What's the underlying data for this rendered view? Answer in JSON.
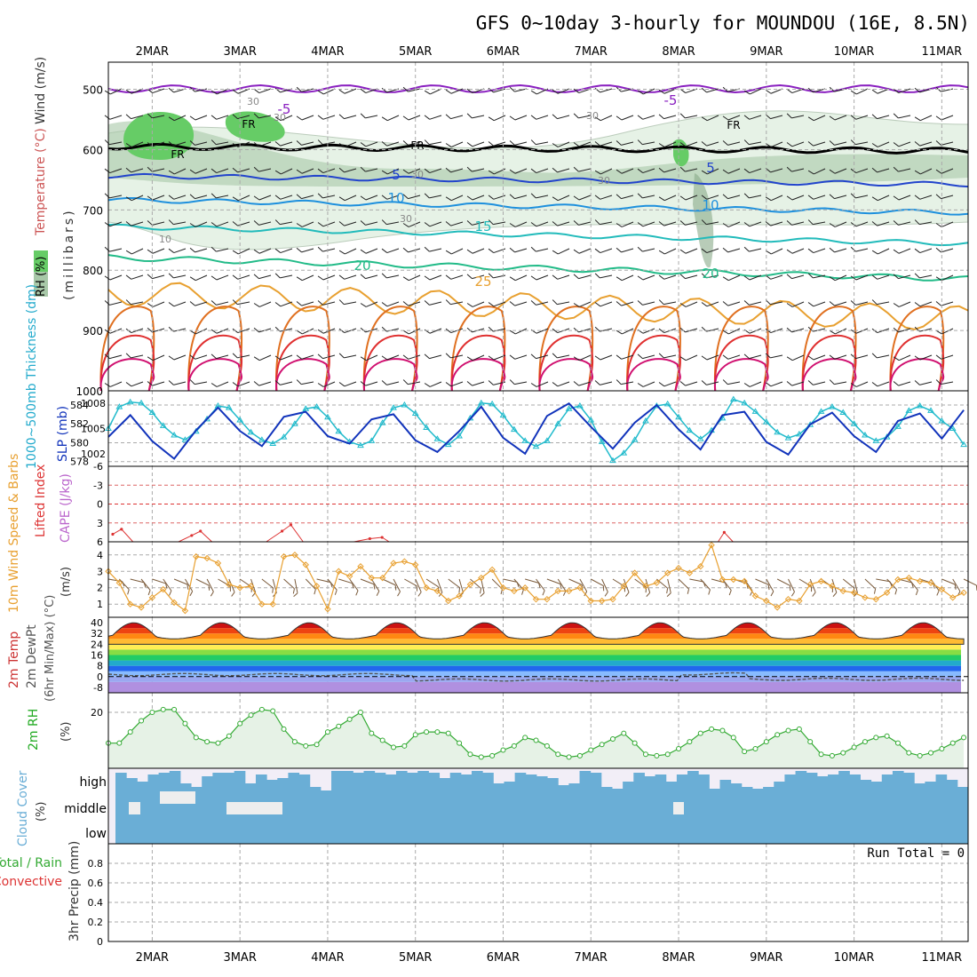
{
  "header": {
    "title": "GFS 0~10day 3-hourly for MOUNDOU (16E, 8.5N)"
  },
  "colors": {
    "rh_green": "#66cc66",
    "rh_mid": "#88aa88",
    "rh_light": "#e6f2e6",
    "thickness": "#22bbcc",
    "slp": "#1133bb",
    "lifted": "#dd3333",
    "wind_speed": "#e8a030",
    "dewpoint": "#666666",
    "rh2m": "#33aa33",
    "cloud": "#6aaed6",
    "grid": "#aaaaaa"
  },
  "time_axis": {
    "labels": [
      "2MAR",
      "3MAR",
      "4MAR",
      "5MAR",
      "6MAR",
      "7MAR",
      "8MAR",
      "9MAR",
      "10MAR",
      "11MAR"
    ],
    "start_offset": 0.5
  },
  "cross_section": {
    "wind_label": "Wind (m/s)",
    "temp_label": "Temperature (°C)",
    "rh_label": "RH (%)",
    "pressure_label": "(millibars)",
    "pressure_ticks": [
      "500",
      "600",
      "700",
      "800",
      "900",
      "1000"
    ],
    "isotherm_labels": [
      "-5",
      "-5",
      "5",
      "5",
      "10",
      "10",
      "15",
      "20",
      "20",
      "25",
      "FR",
      "FR",
      "FR",
      "FR"
    ],
    "rh_labels": [
      "30",
      "30",
      "30",
      "30",
      "30",
      "30",
      "10"
    ]
  },
  "thickness_panel": {
    "left_label": "1000~500mb Thickness (dm)",
    "right_label": "SLP (mb)",
    "left_ticks": [
      "584",
      "582",
      "580",
      "578"
    ],
    "right_ticks": [
      "1008",
      "1005",
      "1002"
    ]
  },
  "lifted_panel": {
    "label_left": "Lifted Index",
    "label_right": "CAPE (J/kg)",
    "ticks": [
      "-6",
      "-3",
      "0",
      "3",
      "6"
    ]
  },
  "wind10m_panel": {
    "label": "10m Wind Speed & Barbs",
    "unit": "(m/s)",
    "ticks": [
      "4",
      "3",
      "2",
      "1"
    ]
  },
  "temp2m_panel": {
    "label_a": "2m Temp",
    "label_b": "2m DewPt",
    "label_c": "(6hr Min/Max) (°C)",
    "ticks": [
      "40",
      "32",
      "24",
      "16",
      "8",
      "0",
      "-8"
    ]
  },
  "rh2m_panel": {
    "label": "2m RH",
    "unit": "(%)",
    "ticks": [
      "20"
    ]
  },
  "cloud_panel": {
    "label": "Cloud Cover",
    "unit": "(%)",
    "levels": [
      "high",
      "middle",
      "low"
    ]
  },
  "precip_panel": {
    "label_a": "Total / Rain",
    "label_b": "Convective",
    "label_c": "3hr Precip (mm)",
    "ticks": [
      "0.8",
      "0.6",
      "0.4",
      "0.2",
      "0"
    ],
    "run_total": "Run Total = 0"
  },
  "chart_data": [
    {
      "type": "line",
      "name": "1000~500mb thickness",
      "x_unit": "day of March",
      "x_range": [
        1.5,
        11.3
      ],
      "ylim": [
        577.5,
        585.5
      ],
      "x": [
        1.5,
        1.625,
        1.75,
        1.875,
        2.0,
        2.125,
        2.25,
        2.375,
        2.5,
        2.625,
        2.75,
        2.875,
        3.0,
        3.125,
        3.25,
        3.375,
        3.5,
        3.625,
        3.75,
        3.875,
        4.0,
        4.125,
        4.25,
        4.375,
        4.5,
        4.625,
        4.75,
        4.875,
        5.0,
        5.125,
        5.25,
        5.375,
        5.5,
        5.625,
        5.75,
        5.875,
        6.0,
        6.125,
        6.25,
        6.375,
        6.5,
        6.625,
        6.75,
        6.875,
        7.0,
        7.125,
        7.25,
        7.375,
        7.5,
        7.625,
        7.75,
        7.875,
        8.0,
        8.125,
        8.25,
        8.375,
        8.5,
        8.625,
        8.75,
        8.875,
        9.0,
        9.125,
        9.25,
        9.375,
        9.5,
        9.625,
        9.75,
        9.875,
        10.0,
        10.125,
        10.25,
        10.375,
        10.5,
        10.625,
        10.75,
        10.875,
        11.0,
        11.125,
        11.25
      ],
      "values": [
        581.5,
        583.8,
        584.3,
        584.2,
        583.2,
        581.8,
        580.8,
        580.3,
        581.2,
        582.5,
        583.9,
        583.7,
        582.4,
        581.1,
        580.3,
        579.9,
        580.6,
        582.0,
        583.6,
        583.8,
        582.7,
        581.2,
        580.1,
        579.7,
        580.2,
        582.1,
        583.7,
        584.0,
        583.1,
        581.6,
        580.4,
        579.8,
        580.7,
        582.6,
        584.2,
        584.1,
        582.9,
        581.4,
        580.2,
        579.6,
        580.2,
        582.0,
        583.6,
        583.9,
        582.4,
        580.1,
        578.1,
        578.9,
        580.3,
        582.3,
        583.9,
        584.1,
        582.7,
        581.3,
        580.4,
        581.3,
        582.6,
        584.6,
        584.2,
        583.3,
        582.2,
        581.1,
        580.5,
        580.9,
        581.9,
        583.3,
        583.8,
        583.2,
        582.0,
        580.8,
        580.2,
        580.6,
        581.7,
        583.4,
        583.9,
        583.4,
        582.3,
        581.5,
        579.8
      ]
    },
    {
      "type": "line",
      "name": "SLP",
      "x_unit": "day of March",
      "ylim": [
        1000.5,
        1009.5
      ],
      "x": [
        1.5,
        1.75,
        2.0,
        2.25,
        2.5,
        2.75,
        3.0,
        3.25,
        3.5,
        3.75,
        4.0,
        4.25,
        4.5,
        4.75,
        5.0,
        5.25,
        5.5,
        5.75,
        6.0,
        6.25,
        6.5,
        6.75,
        7.0,
        7.25,
        7.5,
        7.75,
        8.0,
        8.25,
        8.5,
        8.75,
        9.0,
        9.25,
        9.5,
        9.75,
        10.0,
        10.25,
        10.5,
        10.75,
        11.0,
        11.25
      ],
      "values": [
        1004.0,
        1006.6,
        1003.5,
        1001.4,
        1004.8,
        1007.5,
        1004.7,
        1002.9,
        1006.4,
        1007.0,
        1004.1,
        1003.2,
        1006.1,
        1006.7,
        1003.6,
        1002.2,
        1004.7,
        1007.6,
        1003.9,
        1002.0,
        1006.5,
        1008.0,
        1005.2,
        1002.6,
        1005.7,
        1007.8,
        1004.9,
        1002.5,
        1006.6,
        1007.0,
        1003.4,
        1001.9,
        1005.5,
        1006.9,
        1004.1,
        1002.2,
        1005.9,
        1006.8,
        1003.8,
        1007.2
      ]
    },
    {
      "type": "line",
      "name": "10m wind speed",
      "x_unit": "day of March",
      "ylim": [
        0.2,
        4.8
      ],
      "x": [
        1.5,
        1.625,
        1.75,
        1.875,
        2.0,
        2.125,
        2.25,
        2.375,
        2.5,
        2.625,
        2.75,
        2.875,
        3.0,
        3.125,
        3.25,
        3.375,
        3.5,
        3.625,
        3.75,
        3.875,
        4.0,
        4.125,
        4.25,
        4.375,
        4.5,
        4.625,
        4.75,
        4.875,
        5.0,
        5.125,
        5.25,
        5.375,
        5.5,
        5.625,
        5.75,
        5.875,
        6.0,
        6.125,
        6.25,
        6.375,
        6.5,
        6.625,
        6.75,
        6.875,
        7.0,
        7.125,
        7.25,
        7.375,
        7.5,
        7.625,
        7.75,
        7.875,
        8.0,
        8.125,
        8.25,
        8.375,
        8.5,
        8.625,
        8.75,
        8.875,
        9.0,
        9.125,
        9.25,
        9.375,
        9.5,
        9.625,
        9.75,
        9.875,
        10.0,
        10.125,
        10.25,
        10.375,
        10.5,
        10.625,
        10.75,
        10.875,
        11.0,
        11.125,
        11.25
      ],
      "values": [
        3.0,
        2.3,
        1.0,
        0.8,
        1.4,
        1.9,
        1.1,
        0.6,
        3.9,
        3.8,
        3.5,
        2.2,
        2.0,
        2.1,
        1.0,
        1.0,
        3.9,
        4.0,
        3.4,
        2.1,
        0.7,
        3.0,
        2.7,
        3.3,
        2.6,
        2.6,
        3.5,
        3.6,
        3.4,
        2.0,
        1.8,
        1.2,
        1.5,
        2.2,
        2.6,
        3.1,
        2.0,
        1.8,
        2.0,
        1.3,
        1.3,
        1.8,
        1.8,
        2.0,
        1.2,
        1.2,
        1.3,
        2.1,
        2.9,
        2.1,
        2.3,
        2.9,
        3.2,
        2.9,
        3.3,
        4.6,
        2.5,
        2.5,
        2.4,
        1.5,
        1.2,
        0.8,
        1.3,
        1.2,
        2.2,
        2.4,
        2.1,
        1.8,
        1.7,
        1.4,
        1.3,
        1.7,
        2.5,
        2.6,
        2.4,
        2.3,
        1.9,
        1.4,
        1.7
      ]
    },
    {
      "type": "line",
      "name": "2m RH",
      "x_unit": "day of March",
      "ylim": [
        0,
        27
      ],
      "x": [
        1.5,
        1.625,
        1.75,
        1.875,
        2.0,
        2.125,
        2.25,
        2.375,
        2.5,
        2.625,
        2.75,
        2.875,
        3.0,
        3.125,
        3.25,
        3.375,
        3.5,
        3.625,
        3.75,
        3.875,
        4.0,
        4.125,
        4.25,
        4.375,
        4.5,
        4.625,
        4.75,
        4.875,
        5.0,
        5.125,
        5.25,
        5.375,
        5.5,
        5.625,
        5.75,
        5.875,
        6.0,
        6.125,
        6.25,
        6.375,
        6.5,
        6.625,
        6.75,
        6.875,
        7.0,
        7.125,
        7.25,
        7.375,
        7.5,
        7.625,
        7.75,
        7.875,
        8.0,
        8.125,
        8.25,
        8.375,
        8.5,
        8.625,
        8.75,
        8.875,
        9.0,
        9.125,
        9.25,
        9.375,
        9.5,
        9.625,
        9.75,
        9.875,
        10.0,
        10.125,
        10.25,
        10.375,
        10.5,
        10.625,
        10.75,
        10.875,
        11.0,
        11.125,
        11.25
      ],
      "values": [
        9.0,
        9.0,
        13.0,
        17.0,
        20.0,
        21.0,
        21.0,
        16.0,
        11.0,
        9.5,
        9.0,
        11.5,
        16.0,
        19.0,
        21.0,
        20.5,
        14.0,
        9.5,
        8.0,
        8.5,
        13.0,
        15.0,
        17.5,
        20.0,
        12.5,
        10.0,
        7.5,
        8.0,
        12.0,
        13.0,
        13.0,
        12.5,
        9.0,
        5.0,
        4.0,
        4.5,
        6.5,
        8.0,
        11.0,
        10.0,
        8.0,
        5.0,
        4.0,
        4.5,
        6.5,
        8.5,
        10.5,
        12.5,
        9.0,
        5.0,
        4.5,
        5.0,
        7.0,
        9.5,
        12.5,
        14.0,
        13.5,
        11.0,
        6.0,
        7.0,
        9.5,
        12.0,
        13.5,
        14.0,
        9.5,
        5.0,
        4.5,
        5.5,
        7.5,
        9.5,
        11.0,
        11.5,
        9.0,
        5.5,
        4.5,
        5.5,
        7.0,
        9.0,
        11.0
      ]
    }
  ]
}
